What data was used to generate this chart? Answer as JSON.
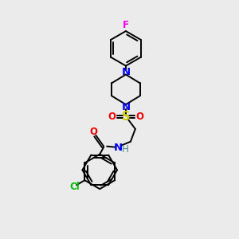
{
  "background_color": "#ebebeb",
  "atom_colors": {
    "C": "#000000",
    "N": "#0000ee",
    "O": "#ee0000",
    "S": "#cccc00",
    "F": "#ee00ee",
    "Cl": "#00bb00",
    "H": "#448888"
  },
  "figsize": [
    3.0,
    3.0
  ],
  "dpi": 100,
  "lw": 1.4,
  "font_size": 8.5
}
